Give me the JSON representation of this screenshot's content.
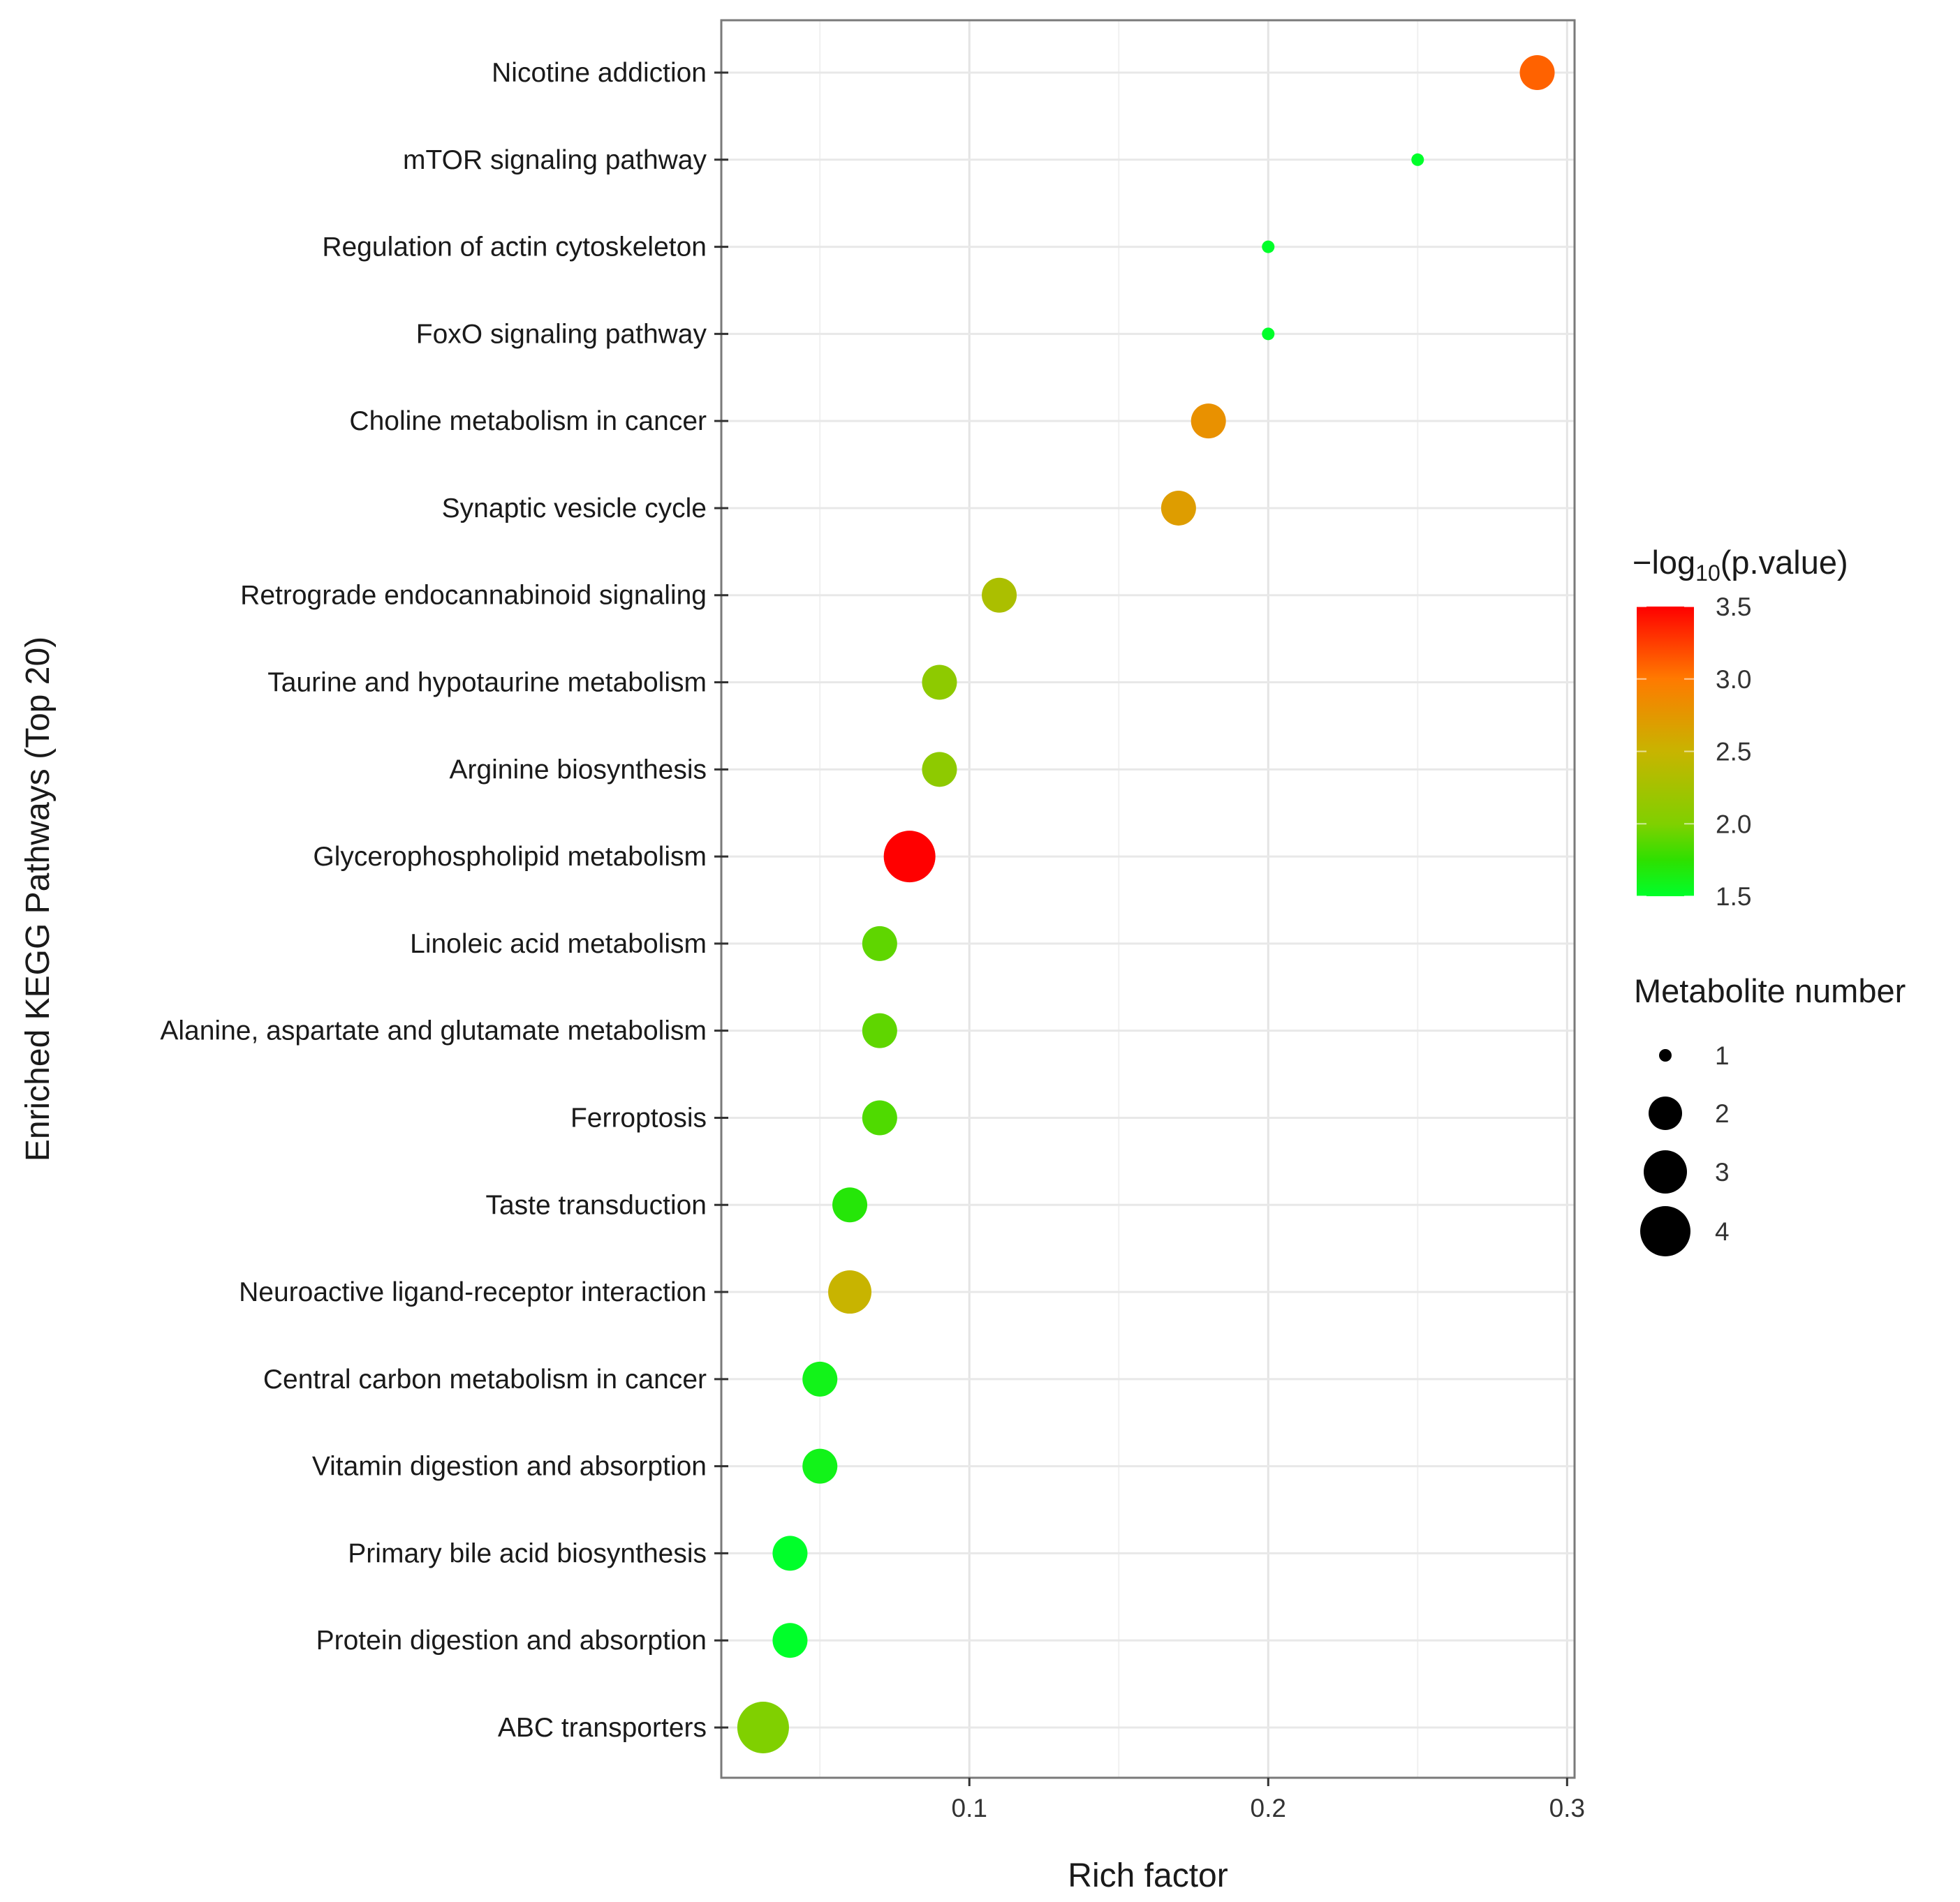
{
  "chart_data": {
    "type": "scatter",
    "subtype": "bubble",
    "title": "",
    "xlabel": "Rich factor",
    "ylabel": "Enriched KEGG Pathways (Top 20)",
    "xlim": [
      0.017,
      0.3025
    ],
    "xticks": [
      0.1,
      0.2,
      0.3
    ],
    "xtick_labels": [
      "0.1",
      "0.2",
      "0.3"
    ],
    "grid": true,
    "categories": [
      "Nicotine addiction",
      "mTOR signaling pathway",
      "Regulation of actin cytoskeleton",
      "FoxO signaling pathway",
      "Choline metabolism in cancer",
      "Synaptic vesicle cycle",
      "Retrograde endocannabinoid signaling",
      "Taurine and hypotaurine metabolism",
      "Arginine biosynthesis",
      "Glycerophospholipid metabolism",
      "Linoleic acid metabolism",
      "Alanine, aspartate and glutamate metabolism",
      "Ferroptosis",
      "Taste transduction",
      "Neuroactive ligand-receptor interaction",
      "Central carbon metabolism in cancer",
      "Vitamin digestion and absorption",
      "Primary bile acid biosynthesis",
      "Protein digestion and absorption",
      "ABC transporters"
    ],
    "rich_factor": [
      0.29,
      0.25,
      0.2,
      0.2,
      0.18,
      0.17,
      0.11,
      0.09,
      0.09,
      0.08,
      0.07,
      0.07,
      0.07,
      0.06,
      0.06,
      0.05,
      0.05,
      0.04,
      0.04,
      0.031
    ],
    "neg_log10_p": [
      3.1,
      1.5,
      1.5,
      1.5,
      2.8,
      2.7,
      2.3,
      2.1,
      2.1,
      3.5,
      1.9,
      1.9,
      1.85,
      1.7,
      2.5,
      1.6,
      1.6,
      1.5,
      1.5,
      2.0
    ],
    "metabolite_number": [
      2,
      1,
      1,
      1,
      2,
      2,
      2,
      2,
      2,
      4,
      2,
      2,
      2,
      2,
      3,
      2,
      2,
      2,
      2,
      4
    ],
    "color_legend": {
      "title_prefix": "−log",
      "title_sub": "10",
      "title_suffix": "(p.value)",
      "range": [
        1.5,
        3.5
      ],
      "ticks": [
        "3.5",
        "3.0",
        "2.5",
        "2.0",
        "1.5"
      ],
      "tick_values": [
        3.5,
        3.0,
        2.5,
        2.0,
        1.5
      ],
      "stops": [
        {
          "value": 1.5,
          "color": "#00ff2a"
        },
        {
          "value": 1.75,
          "color": "#2ee000"
        },
        {
          "value": 2.0,
          "color": "#80d000"
        },
        {
          "value": 2.5,
          "color": "#c8b400"
        },
        {
          "value": 3.0,
          "color": "#ff7a00"
        },
        {
          "value": 3.5,
          "color": "#ff0000"
        }
      ]
    },
    "size_legend": {
      "title": "Metabolite number",
      "values": [
        1,
        2,
        3,
        4
      ],
      "labels": [
        "1",
        "2",
        "3",
        "4"
      ]
    },
    "legend_placement": "right"
  }
}
